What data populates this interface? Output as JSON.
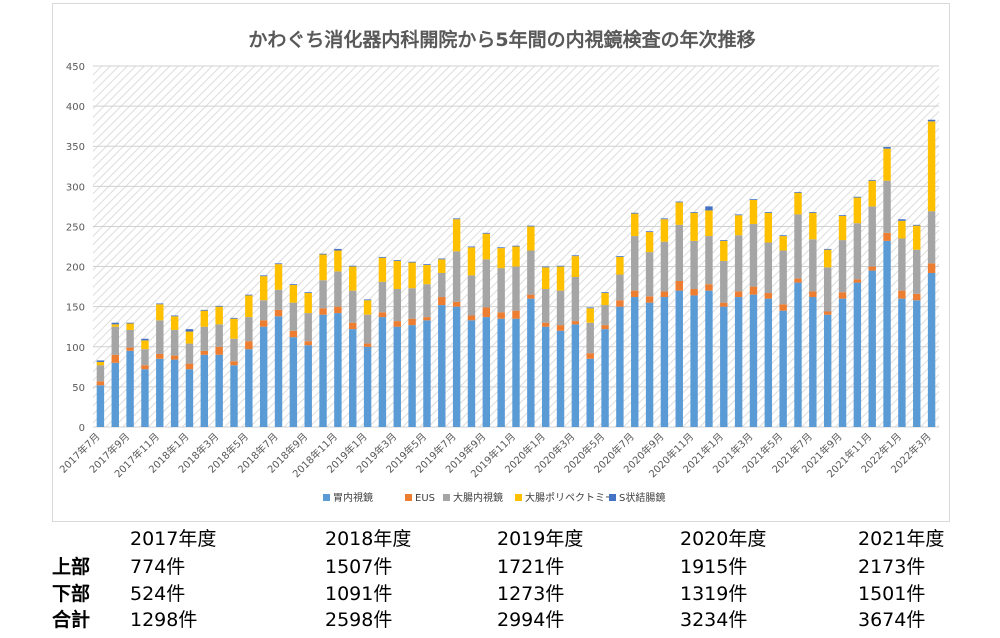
{
  "chart_data": {
    "type": "bar",
    "stacked": true,
    "title": "かわぐち消化器内科開院から5年間の内視鏡検査の年次推移",
    "ylim": [
      0,
      450
    ],
    "yticks": [
      0,
      50,
      100,
      150,
      200,
      250,
      300,
      350,
      400,
      450
    ],
    "grid": true,
    "legend_position": "bottom",
    "categories": [
      "2017年7月",
      "2017年8月",
      "2017年9月",
      "2017年10月",
      "2017年11月",
      "2017年12月",
      "2018年1月",
      "2018年2月",
      "2018年3月",
      "2018年4月",
      "2018年5月",
      "2018年6月",
      "2018年7月",
      "2018年8月",
      "2018年9月",
      "2018年10月",
      "2018年11月",
      "2018年12月",
      "2019年1月",
      "2019年2月",
      "2019年3月",
      "2019年4月",
      "2019年5月",
      "2019年6月",
      "2019年7月",
      "2019年8月",
      "2019年9月",
      "2019年10月",
      "2019年11月",
      "2019年12月",
      "2020年1月",
      "2020年2月",
      "2020年3月",
      "2020年4月",
      "2020年5月",
      "2020年6月",
      "2020年7月",
      "2020年8月",
      "2020年9月",
      "2020年10月",
      "2020年11月",
      "2020年12月",
      "2021年1月",
      "2021年2月",
      "2021年3月",
      "2021年4月",
      "2021年5月",
      "2021年6月",
      "2021年7月",
      "2021年8月",
      "2021年9月",
      "2021年10月",
      "2021年11月",
      "2021年12月",
      "2022年1月",
      "2022年2月",
      "2022年3月"
    ],
    "xtick_labels": [
      "2017年7月",
      "2017年9月",
      "2017年11月",
      "2018年1月",
      "2018年3月",
      "2018年5月",
      "2018年7月",
      "2018年9月",
      "2018年11月",
      "2019年1月",
      "2019年3月",
      "2019年5月",
      "2019年7月",
      "2019年9月",
      "2019年11月",
      "2020年1月",
      "2020年3月",
      "2020年5月",
      "2020年7月",
      "2020年9月",
      "2020年11月",
      "2021年1月",
      "2021年3月",
      "2021年5月",
      "2021年7月",
      "2021年9月",
      "2021年11月",
      "2022年1月",
      "2022年3月"
    ],
    "series": [
      {
        "name": "胃内視鏡",
        "color": "#5b9bd5",
        "values": [
          52,
          80,
          95,
          72,
          85,
          84,
          72,
          90,
          90,
          77,
          97,
          125,
          138,
          112,
          102,
          140,
          142,
          122,
          100,
          137,
          125,
          127,
          133,
          152,
          150,
          133,
          137,
          135,
          135,
          160,
          125,
          120,
          128,
          85,
          122,
          150,
          162,
          155,
          162,
          170,
          164,
          170,
          150,
          162,
          165,
          160,
          145,
          180,
          162,
          140,
          160,
          180,
          195,
          232,
          160,
          158,
          192
        ]
      },
      {
        "name": "EUS",
        "color": "#ed7d31",
        "values": [
          5,
          10,
          4,
          5,
          6,
          5,
          7,
          5,
          10,
          5,
          10,
          8,
          8,
          8,
          5,
          8,
          8,
          8,
          4,
          6,
          7,
          8,
          4,
          10,
          6,
          6,
          12,
          8,
          10,
          5,
          5,
          7,
          4,
          7,
          5,
          8,
          8,
          8,
          7,
          12,
          8,
          8,
          5,
          7,
          10,
          7,
          8,
          5,
          7,
          4,
          8,
          4,
          5,
          10,
          10,
          8,
          12
        ]
      },
      {
        "name": "大腸内視鏡",
        "color": "#a5a5a5",
        "values": [
          20,
          35,
          22,
          20,
          42,
          32,
          25,
          30,
          28,
          28,
          30,
          25,
          25,
          35,
          35,
          35,
          44,
          40,
          36,
          38,
          40,
          38,
          41,
          30,
          63,
          50,
          60,
          55,
          55,
          55,
          42,
          43,
          55,
          38,
          25,
          32,
          68,
          55,
          62,
          70,
          60,
          60,
          52,
          70,
          78,
          63,
          67,
          80,
          65,
          55,
          65,
          70,
          75,
          65,
          65,
          55,
          65
        ]
      },
      {
        "name": "大腸ポリペクトミー",
        "color": "#ffc000",
        "values": [
          4,
          3,
          8,
          11,
          20,
          17,
          15,
          20,
          22,
          25,
          27,
          30,
          32,
          22,
          25,
          32,
          26,
          30,
          18,
          30,
          35,
          32,
          24,
          17,
          40,
          35,
          32,
          25,
          25,
          30,
          27,
          30,
          26,
          18,
          15,
          22,
          28,
          25,
          28,
          28,
          35,
          32,
          25,
          25,
          30,
          37,
          18,
          27,
          33,
          22,
          30,
          32,
          32,
          40,
          22,
          30,
          112
        ]
      },
      {
        "name": "S状結腸鏡",
        "color": "#4472c4",
        "values": [
          2,
          2,
          1,
          2,
          1,
          1,
          3,
          1,
          1,
          1,
          1,
          1,
          1,
          1,
          1,
          1,
          2,
          1,
          1,
          1,
          1,
          1,
          1,
          1,
          1,
          1,
          1,
          1,
          1,
          1,
          1,
          1,
          1,
          1,
          1,
          1,
          1,
          1,
          1,
          1,
          1,
          5,
          1,
          1,
          1,
          1,
          1,
          1,
          1,
          1,
          1,
          1,
          1,
          2,
          2,
          1,
          2
        ]
      }
    ]
  },
  "summary": {
    "years": [
      "2017年度",
      "2018年度",
      "2019年度",
      "2020年度",
      "2021年度"
    ],
    "rows": [
      {
        "label": "上部",
        "values": [
          "774件",
          "1507件",
          "1721件",
          "1915件",
          "2173件"
        ]
      },
      {
        "label": "下部",
        "values": [
          "524件",
          "1091件",
          "1273件",
          "1319件",
          "1501件"
        ]
      },
      {
        "label": "合計",
        "values": [
          "1298件",
          "2598件",
          "2994件",
          "3234件",
          "3674件"
        ]
      }
    ]
  }
}
